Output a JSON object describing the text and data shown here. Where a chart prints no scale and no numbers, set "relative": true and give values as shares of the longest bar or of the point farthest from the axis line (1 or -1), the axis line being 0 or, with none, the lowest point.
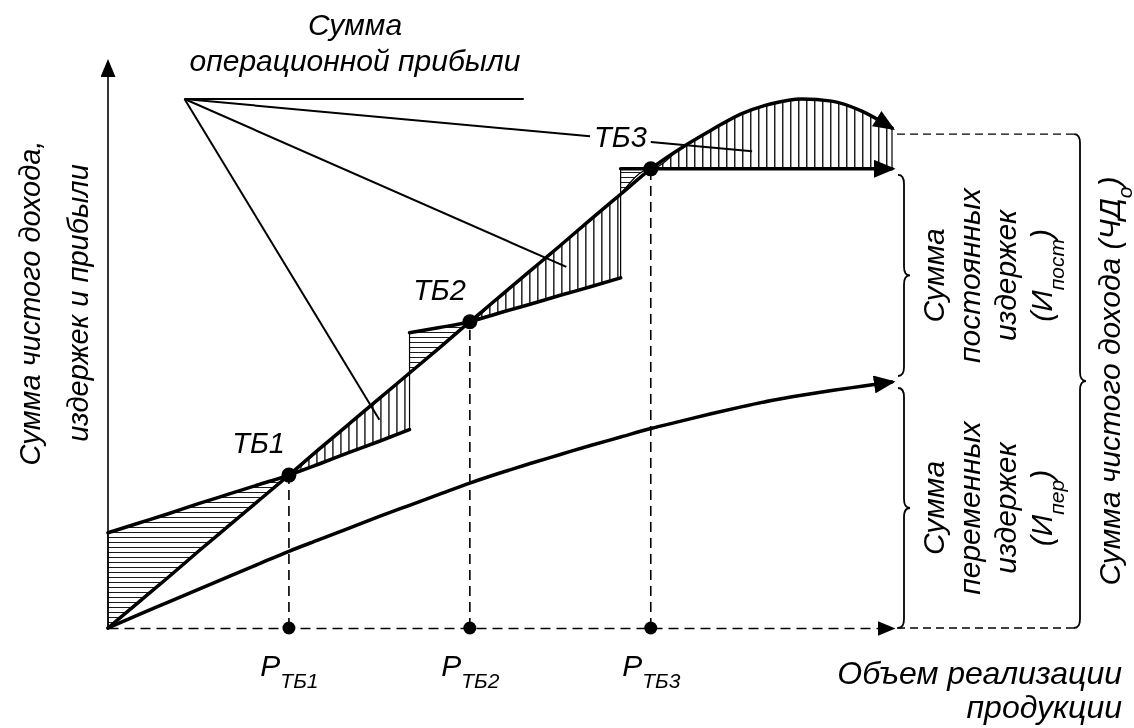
{
  "chart_data": {
    "type": "line",
    "relative": true,
    "xlabel": "Объем реализации продукции",
    "ylabel": "Сумма чистого дохода, издержек и прибыли",
    "categories": [
      null,
      null,
      null,
      null,
      null,
      null,
      "P$_{ТБ1}$",
      null,
      null,
      null,
      null,
      null,
      "P$_{ТБ2}$",
      null,
      null,
      null,
      null,
      null,
      "P$_{ТБ3}$",
      null,
      null,
      null,
      null,
      null,
      null,
      null,
      null
    ],
    "tick_labels": "x",
    "series": [
      {
        "color": "#000000",
        "values": [
          0,
          0.048,
          0.096,
          0.145,
          0.193,
          0.241,
          0.289,
          0.338,
          0.386,
          0.434,
          0.482,
          0.53,
          0.579,
          0.627,
          0.675,
          0.723,
          0.772,
          0.82,
          0.868,
          0.907,
          0.941,
          0.972,
          0.991,
          1.0,
          0.996,
          0.977,
          0.945
        ]
      },
      {
        "color": "#000000",
        "values": [
          0.18,
          0.198,
          0.216,
          0.235,
          0.253,
          0.271,
          0.289,
          0.31,
          0.332,
          0.353,
          0.375,
          null,
          null,
          null,
          null,
          null,
          null,
          null,
          null,
          null,
          null,
          null,
          null,
          null,
          null,
          null,
          null
        ],
        "lower": [
          0,
          0.048,
          0.096,
          0.145,
          0.193,
          0.241,
          0.289,
          0.31,
          0.332,
          0.353,
          0.375,
          null,
          null,
          null,
          null,
          null,
          null,
          null,
          null,
          null,
          null,
          null,
          null,
          null,
          null,
          null,
          null
        ],
        "upper": [
          0.18,
          0.198,
          0.216,
          0.235,
          0.253,
          0.271,
          0.289,
          0.338,
          0.386,
          0.434,
          0.482,
          null,
          null,
          null,
          null,
          null,
          null,
          null,
          null,
          null,
          null,
          null,
          null,
          null,
          null,
          null,
          null
        ]
      },
      {
        "color": "#000000",
        "values": [
          null,
          null,
          null,
          null,
          null,
          null,
          null,
          null,
          null,
          null,
          0.558,
          0.568,
          0.579,
          0.596,
          0.612,
          0.629,
          0.645,
          0.662,
          null,
          null,
          null,
          null,
          null,
          null,
          null,
          null,
          null
        ],
        "lower": [
          null,
          null,
          null,
          null,
          null,
          null,
          null,
          null,
          null,
          null,
          0.482,
          0.53,
          0.579,
          0.596,
          0.612,
          0.629,
          0.645,
          0.662,
          null,
          null,
          null,
          null,
          null,
          null,
          null,
          null,
          null
        ],
        "upper": [
          null,
          null,
          null,
          null,
          null,
          null,
          null,
          null,
          null,
          null,
          0.558,
          0.568,
          0.579,
          0.627,
          0.675,
          0.723,
          0.772,
          0.82,
          null,
          null,
          null,
          null,
          null,
          null,
          null,
          null,
          null
        ]
      },
      {
        "color": "#000000",
        "values": [
          null,
          null,
          null,
          null,
          null,
          null,
          null,
          null,
          null,
          null,
          null,
          null,
          null,
          null,
          null,
          null,
          null,
          0.868,
          0.868,
          0.868,
          0.868,
          0.868,
          0.868,
          0.868,
          0.868,
          0.868,
          0.868
        ],
        "lower": [
          null,
          null,
          null,
          null,
          null,
          null,
          null,
          null,
          null,
          null,
          null,
          null,
          null,
          null,
          null,
          null,
          null,
          0.82,
          0.868,
          0.868,
          0.868,
          0.868,
          0.868,
          0.868,
          0.868,
          0.868,
          0.868
        ],
        "upper": [
          null,
          null,
          null,
          null,
          null,
          null,
          null,
          null,
          null,
          null,
          null,
          null,
          null,
          null,
          null,
          null,
          null,
          0.868,
          0.868,
          0.907,
          0.941,
          0.972,
          0.991,
          1.0,
          0.996,
          0.977,
          0.945
        ]
      },
      {
        "color": "#000000",
        "values": [
          0,
          0.025,
          0.049,
          0.073,
          0.097,
          0.121,
          0.145,
          0.167,
          0.189,
          0.211,
          0.232,
          0.253,
          0.274,
          0.293,
          0.311,
          0.328,
          0.345,
          0.361,
          0.377,
          0.391,
          0.405,
          0.418,
          0.43,
          0.44,
          0.449,
          0.457,
          0.465
        ]
      },
      {
        "type": "lollipop",
        "color": "#000000",
        "marker": "circle",
        "line_style": "dashed",
        "values": [
          null,
          null,
          null,
          null,
          null,
          null,
          0.289,
          null,
          null,
          null,
          null,
          null,
          0.579,
          null,
          null,
          null,
          null,
          null,
          0.868,
          null,
          null,
          null,
          null,
          null,
          null,
          null,
          null
        ]
      },
      {
        "type": "scatter",
        "color": "#000000",
        "marker": "circle",
        "values": [
          null,
          null,
          null,
          null,
          null,
          null,
          0,
          null,
          null,
          null,
          null,
          null,
          0,
          null,
          null,
          null,
          null,
          null,
          0,
          null,
          null,
          null,
          null,
          null,
          null,
          null,
          null
        ]
      }
    ],
    "annotations": [
      "Сумма операционной прибыли",
      {
        "text": "ТБ1",
        "x": "P$_{ТБ1}$",
        "y": 0.289
      },
      {
        "text": "ТБ2",
        "x": "P$_{ТБ2}$",
        "y": 0.579
      },
      {
        "text": "ТБ3",
        "x": "P$_{ТБ3}$",
        "y": 0.868
      },
      "Сумма переменных издержек (И$_{пер}$)",
      "Сумма постоянных издержек (И$_{пост}$)",
      "Сумма чистого дохода (ЧД$_{о}$)"
    ]
  }
}
